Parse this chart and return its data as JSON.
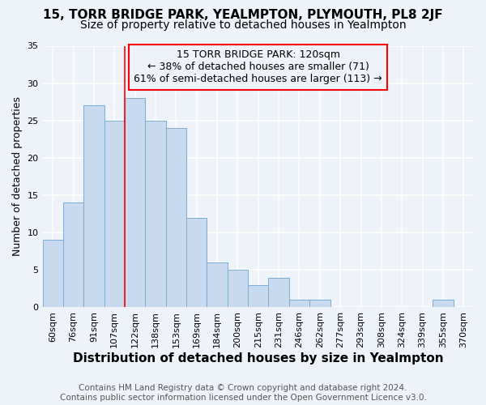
{
  "title": "15, TORR BRIDGE PARK, YEALMPTON, PLYMOUTH, PL8 2JF",
  "subtitle": "Size of property relative to detached houses in Yealmpton",
  "xlabel": "Distribution of detached houses by size in Yealmpton",
  "ylabel": "Number of detached properties",
  "bar_color": "#c8daf0",
  "bar_edge_color": "#7aadd4",
  "categories": [
    "60sqm",
    "76sqm",
    "91sqm",
    "107sqm",
    "122sqm",
    "138sqm",
    "153sqm",
    "169sqm",
    "184sqm",
    "200sqm",
    "215sqm",
    "231sqm",
    "246sqm",
    "262sqm",
    "277sqm",
    "293sqm",
    "308sqm",
    "324sqm",
    "339sqm",
    "355sqm",
    "370sqm"
  ],
  "values": [
    9,
    14,
    27,
    25,
    28,
    25,
    24,
    12,
    6,
    5,
    3,
    4,
    1,
    1,
    0,
    0,
    0,
    0,
    0,
    1,
    0
  ],
  "ylim_min": 0,
  "ylim_max": 35,
  "yticks": [
    0,
    5,
    10,
    15,
    20,
    25,
    30,
    35
  ],
  "property_label": "15 TORR BRIDGE PARK: 120sqm",
  "pct_smaller": 38,
  "n_smaller": 71,
  "pct_larger_semi": 61,
  "n_larger_semi": 113,
  "vline_bin_index": 4,
  "footer_line1": "Contains HM Land Registry data © Crown copyright and database right 2024.",
  "footer_line2": "Contains public sector information licensed under the Open Government Licence v3.0.",
  "background_color": "#eef2f9",
  "grid_color": "#ffffff",
  "title_fontsize": 11,
  "subtitle_fontsize": 10,
  "xlabel_fontsize": 11,
  "ylabel_fontsize": 9,
  "tick_fontsize": 8,
  "footer_fontsize": 7.5,
  "ann_fontsize": 9
}
